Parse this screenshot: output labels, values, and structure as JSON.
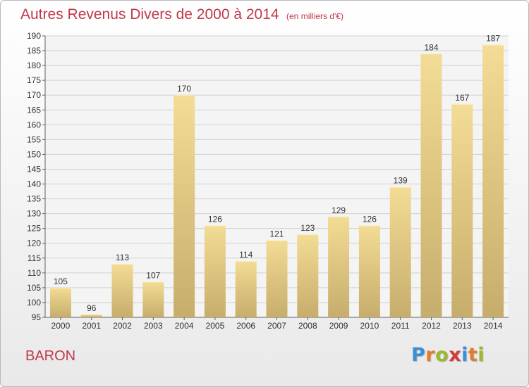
{
  "title": "Autres Revenus Divers de 2000 à 2014",
  "unit_label": "(en milliers d'€)",
  "place_label": "BARON",
  "logo": {
    "letters": [
      "P",
      "r",
      "o",
      "x",
      "i",
      "t",
      "i"
    ],
    "colors": [
      "#3a8fd6",
      "#e27b2c",
      "#9ab92b",
      "#d23b3b",
      "#3a8fd6",
      "#e27b2c",
      "#9ab92b"
    ]
  },
  "colors": {
    "title": "#c0394b",
    "bar_light": "#f3dc95",
    "bar_dark": "#c6ad6c",
    "grid": "#d0d0d0",
    "axis": "#606060"
  },
  "chart_data": {
    "type": "bar",
    "title": "Autres Revenus Divers de 2000 à 2014",
    "xlabel": "",
    "ylabel": "",
    "ylim": [
      95,
      190
    ],
    "yticks": [
      95,
      100,
      105,
      110,
      115,
      120,
      125,
      130,
      135,
      140,
      145,
      150,
      155,
      160,
      165,
      170,
      175,
      180,
      185,
      190
    ],
    "grid": true,
    "categories": [
      "2000",
      "2001",
      "2002",
      "2003",
      "2004",
      "2005",
      "2006",
      "2007",
      "2008",
      "2009",
      "2010",
      "2011",
      "2012",
      "2013",
      "2014"
    ],
    "values": [
      105,
      96,
      113,
      107,
      170,
      126,
      114,
      121,
      123,
      129,
      126,
      139,
      184,
      167,
      187
    ]
  }
}
